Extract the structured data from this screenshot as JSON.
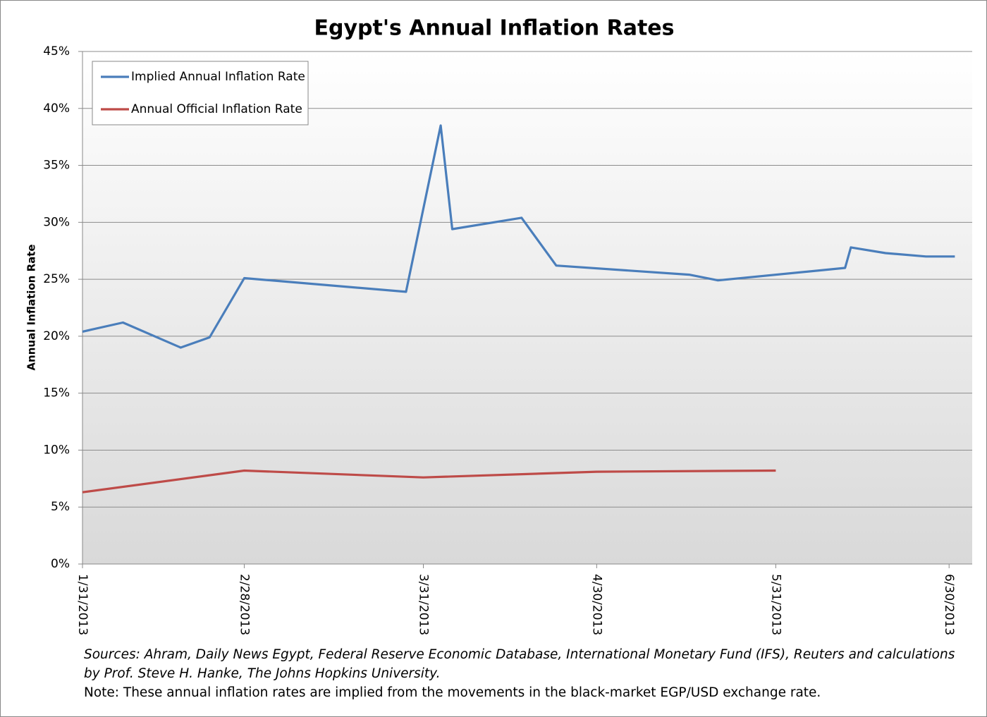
{
  "chart_data": {
    "type": "line",
    "title": "Egypt's Annual Inflation Rates",
    "y_label": "Annual Inflation Rate",
    "notes": [
      "Sources: Ahram, Daily News Egypt, Federal Reserve Economic Database, International Monetary Fund (IFS),  Reuters and calculations by Prof. Steve H. Hanke, The Johns Hopkins University.",
      "Note: These annual inflation rates are implied from the movements in the  black-market EGP/USD exchange rate."
    ],
    "series": [
      {
        "name": "Implied Annual Inflation Rate",
        "color": "#4a7ebb",
        "x": [
          "2013-01-31",
          "2013-02-07",
          "2013-02-17",
          "2013-02-22",
          "2013-02-28",
          "2013-03-28",
          "2013-04-03",
          "2013-04-05",
          "2013-04-17",
          "2013-04-23",
          "2013-05-16",
          "2013-05-21",
          "2013-06-12",
          "2013-06-13",
          "2013-06-19",
          "2013-06-26",
          "2013-07-01"
        ],
        "values": [
          20.4,
          21.2,
          19.0,
          19.9,
          25.1,
          23.9,
          38.5,
          29.4,
          30.4,
          26.2,
          25.4,
          24.9,
          26.0,
          27.8,
          27.3,
          27.0,
          27.0
        ]
      },
      {
        "name": "Annual Official Inflation Rate",
        "color": "#be4b48",
        "x": [
          "2013-01-31",
          "2013-02-28",
          "2013-03-31",
          "2013-04-30",
          "2013-05-31"
        ],
        "values": [
          6.3,
          8.2,
          7.6,
          8.1,
          8.2
        ]
      }
    ],
    "xlim": [
      "2013-01-31",
      "2013-07-04"
    ],
    "xticks": [
      {
        "value": "2013-01-31",
        "label": "1/31/2013"
      },
      {
        "value": "2013-02-28",
        "label": "2/28/2013"
      },
      {
        "value": "2013-03-31",
        "label": "3/31/2013"
      },
      {
        "value": "2013-04-30",
        "label": "4/30/2013"
      },
      {
        "value": "2013-05-31",
        "label": "5/31/2013"
      },
      {
        "value": "2013-06-30",
        "label": "6/30/2013"
      }
    ],
    "ylim": [
      0,
      45
    ],
    "yticks": [
      {
        "value": 0,
        "label": "0%"
      },
      {
        "value": 5,
        "label": "5%"
      },
      {
        "value": 10,
        "label": "10%"
      },
      {
        "value": 15,
        "label": "15%"
      },
      {
        "value": 20,
        "label": "20%"
      },
      {
        "value": 25,
        "label": "25%"
      },
      {
        "value": 30,
        "label": "30%"
      },
      {
        "value": 35,
        "label": "35%"
      },
      {
        "value": 40,
        "label": "40%"
      },
      {
        "value": 45,
        "label": "45%"
      }
    ],
    "grid": true,
    "legend": "top-left"
  }
}
